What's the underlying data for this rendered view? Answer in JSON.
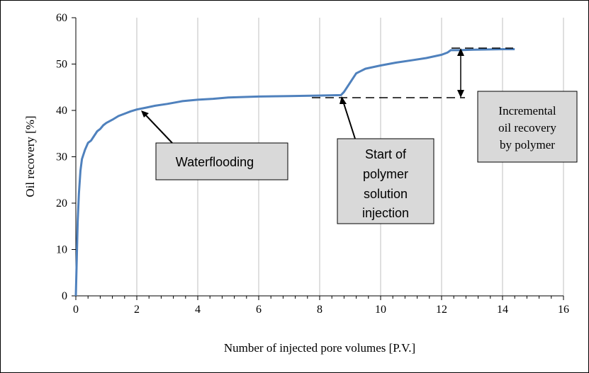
{
  "chart_data": {
    "type": "line",
    "title": "",
    "xlabel": "Number of injected pore volumes [P.V.]",
    "ylabel": "Oil recovery [%]",
    "xlim": [
      0,
      16
    ],
    "ylim": [
      0,
      60
    ],
    "xticks": [
      0,
      2,
      4,
      6,
      8,
      10,
      12,
      14,
      16
    ],
    "yticks": [
      0,
      10,
      20,
      30,
      40,
      50,
      60
    ],
    "grid": "vertical",
    "legend": "none",
    "line_color": "#4f81bd",
    "series": [
      {
        "x": [
          0,
          0.03,
          0.06,
          0.1,
          0.15,
          0.2,
          0.3,
          0.4,
          0.5,
          0.6,
          0.7,
          0.8,
          0.9,
          1.0,
          1.2,
          1.4,
          1.6,
          1.8,
          2.0,
          2.3,
          2.6,
          3.0,
          3.5,
          4.0,
          4.5,
          5.0,
          6.0,
          7.0,
          8.0,
          8.7,
          8.8,
          9.0,
          9.2,
          9.5,
          10.0,
          10.5,
          11.0,
          11.5,
          12.0,
          12.2,
          12.3,
          12.6,
          13.0,
          14.0,
          14.4
        ],
        "y": [
          0,
          8,
          16,
          22,
          27,
          29.5,
          31.5,
          33,
          33.5,
          34.5,
          35.5,
          36,
          36.8,
          37.3,
          38,
          38.8,
          39.3,
          39.8,
          40.2,
          40.6,
          41,
          41.4,
          42,
          42.3,
          42.5,
          42.8,
          43,
          43.1,
          43.2,
          43.3,
          44,
          46,
          48,
          49,
          49.7,
          50.3,
          50.8,
          51.3,
          52,
          52.5,
          53,
          53,
          53.1,
          53.2,
          53.2
        ]
      }
    ],
    "annotations": [
      {
        "text": "Waterflooding"
      },
      {
        "lines": [
          "Start of",
          "polymer",
          "solution",
          "injection"
        ]
      },
      {
        "lines": [
          "Incremental",
          "oil recovery",
          "by polymer"
        ]
      }
    ]
  }
}
